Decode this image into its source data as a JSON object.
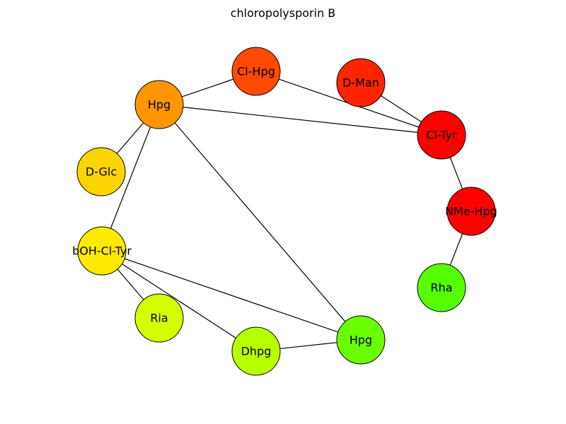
{
  "title": "chloropolysporin B",
  "nodes": [
    {
      "id": "n1",
      "label": "Cl-Hpg",
      "color": "#ff4a00"
    },
    {
      "id": "n2",
      "label": "D-Man",
      "color": "#ff2500"
    },
    {
      "id": "n3",
      "label": "Hpg",
      "color": "#ff9500"
    },
    {
      "id": "n4",
      "label": "Cl-Tyr",
      "color": "#ff0000"
    },
    {
      "id": "n5",
      "label": "D-Glc",
      "color": "#ffd500"
    },
    {
      "id": "n6",
      "label": "NMe-Hpg",
      "color": "#ff0000"
    },
    {
      "id": "n7",
      "label": "bOH-Cl-Tyr",
      "color": "#ffea00"
    },
    {
      "id": "n8",
      "label": "Rha",
      "color": "#55ff00"
    },
    {
      "id": "n9",
      "label": "Ria",
      "color": "#d4ff00"
    },
    {
      "id": "n10",
      "label": "Hpg",
      "color": "#6aff00"
    },
    {
      "id": "n11",
      "label": "Dhpg",
      "color": "#b8ff00"
    }
  ],
  "edges": [
    [
      "n3",
      "n1"
    ],
    [
      "n1",
      "n4"
    ],
    [
      "n2",
      "n4"
    ],
    [
      "n3",
      "n4"
    ],
    [
      "n3",
      "n5"
    ],
    [
      "n3",
      "n7"
    ],
    [
      "n3",
      "n10"
    ],
    [
      "n4",
      "n6"
    ],
    [
      "n6",
      "n8"
    ],
    [
      "n7",
      "n9"
    ],
    [
      "n7",
      "n11"
    ],
    [
      "n7",
      "n10"
    ],
    [
      "n11",
      "n10"
    ]
  ]
}
